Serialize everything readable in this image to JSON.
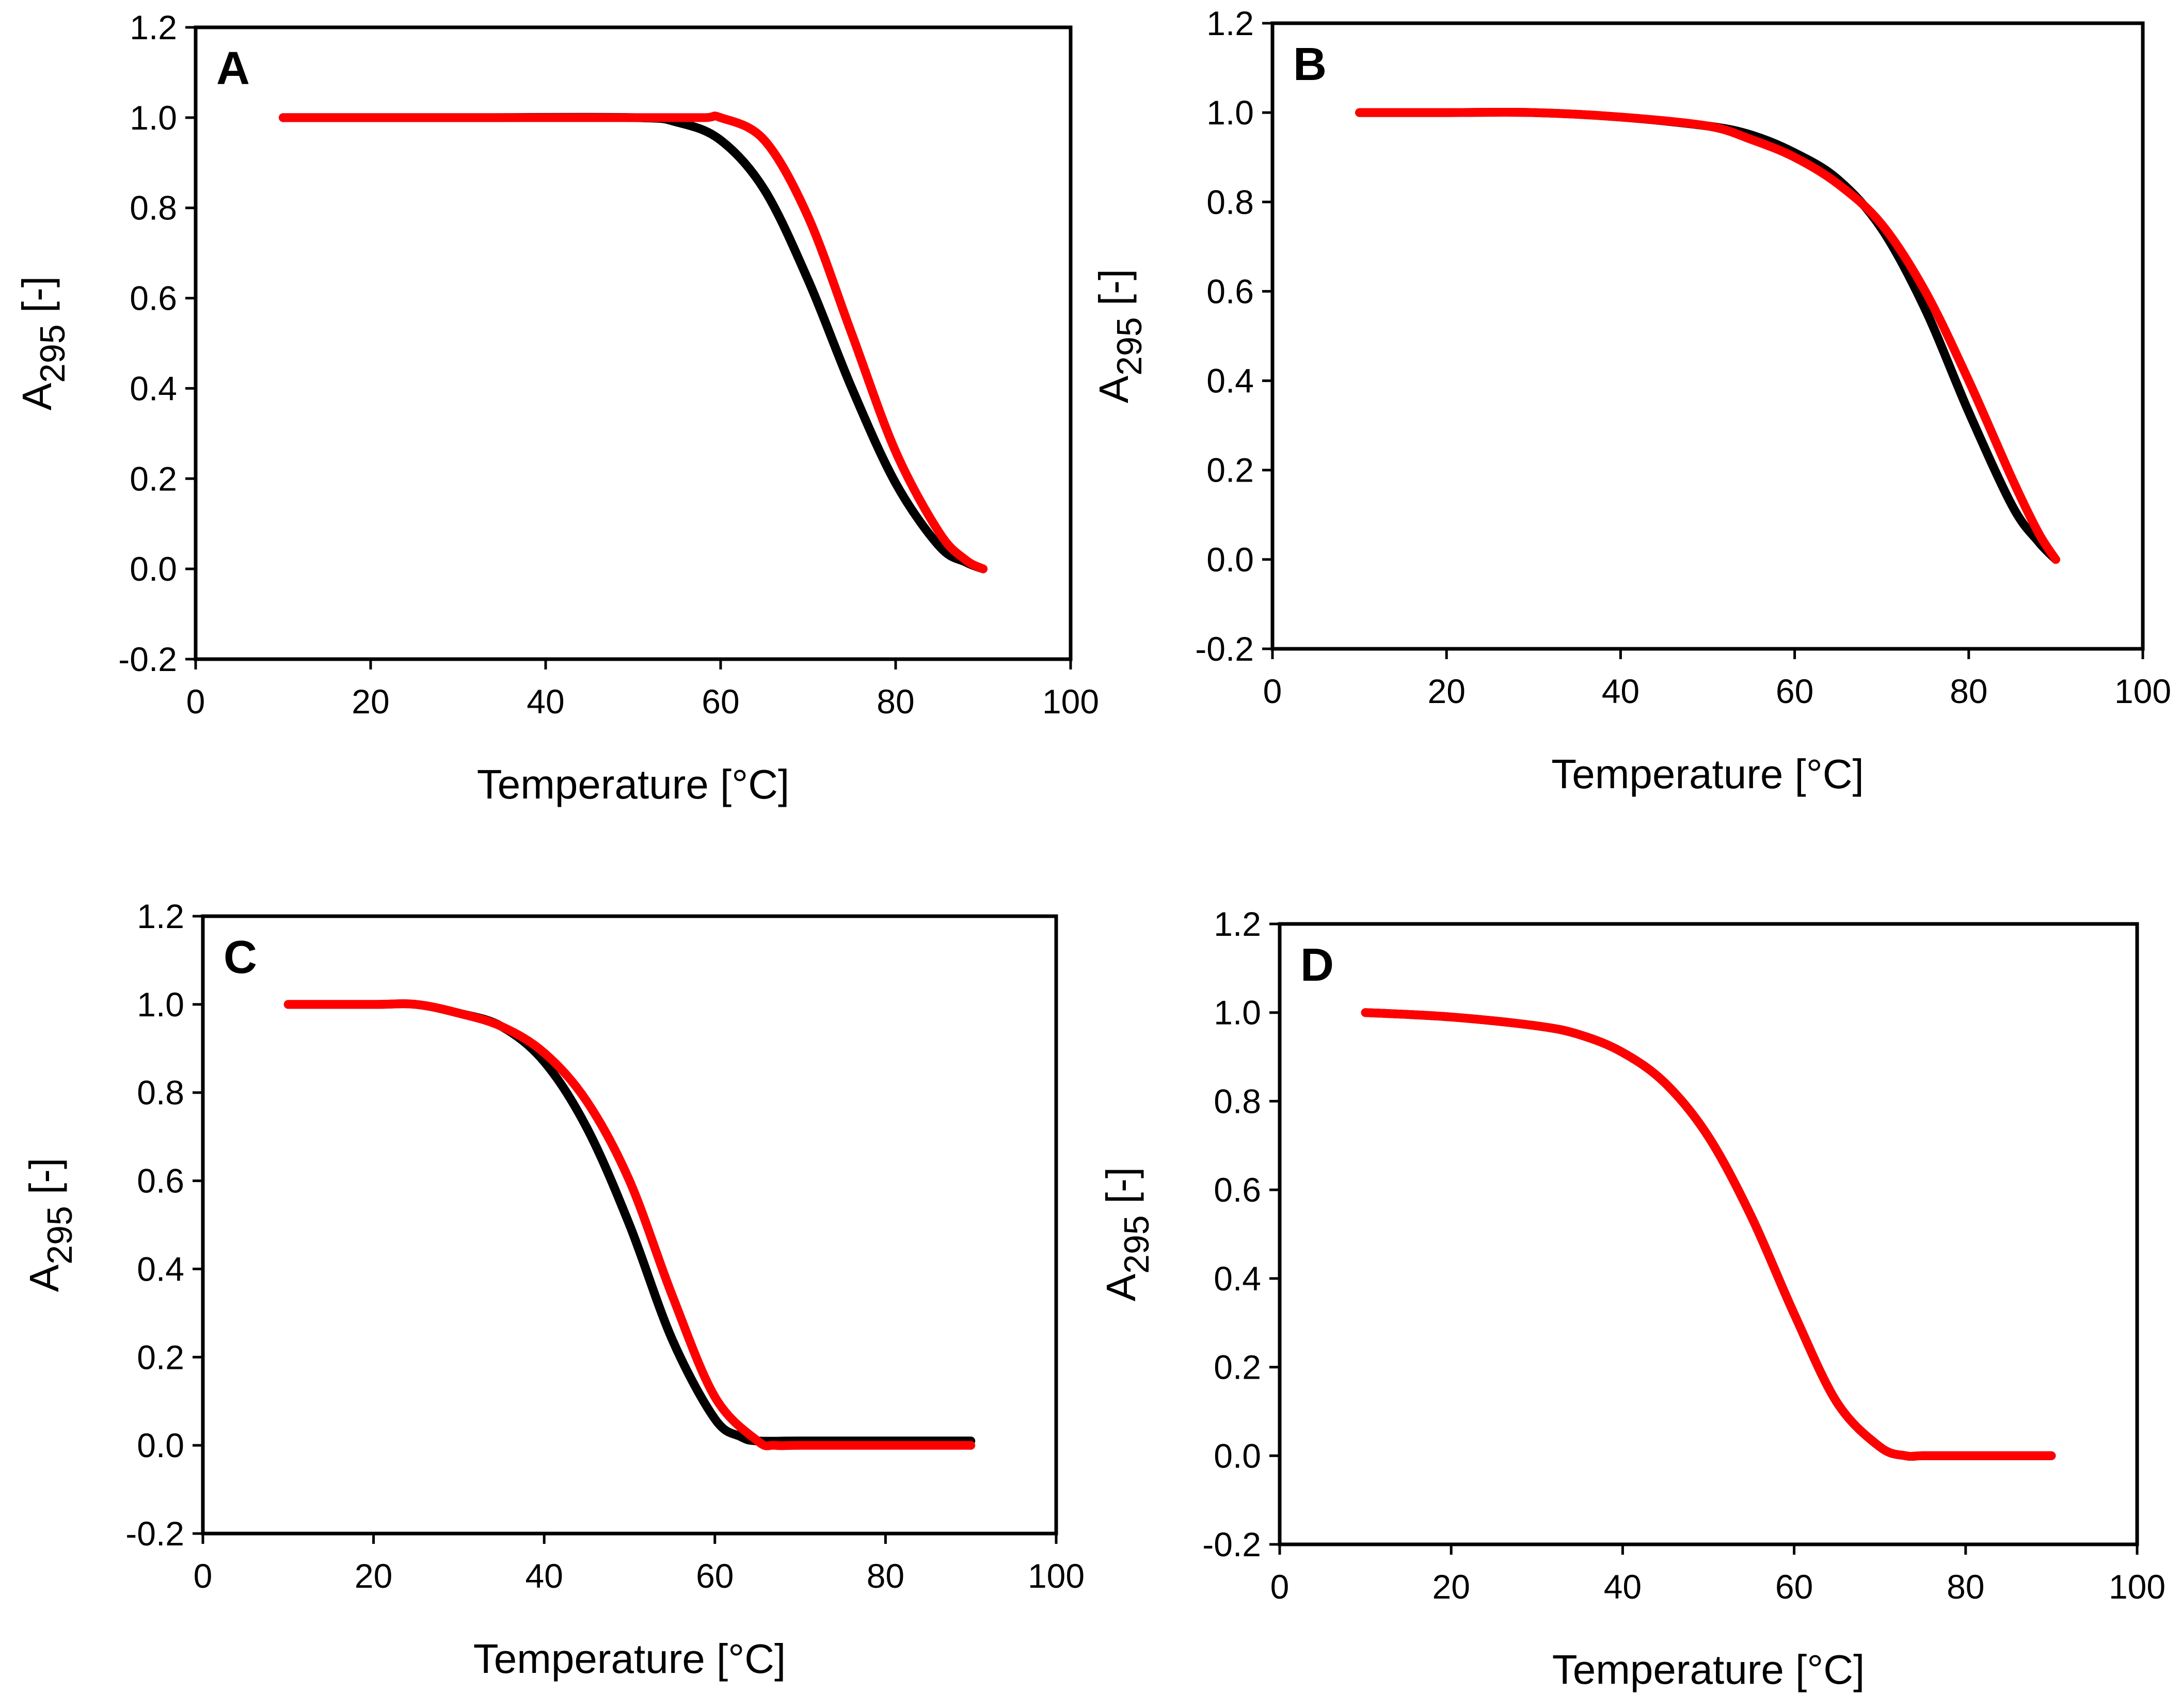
{
  "figure": {
    "colors": {
      "series_black": "#000000",
      "series_red": "#ff0000"
    }
  },
  "chart_data": [
    {
      "panel_label": "A",
      "type": "line",
      "xlabel": "Temperature [°C]",
      "ylabel_main": "A",
      "ylabel_sub": "295",
      "ylabel_suffix": " [-]",
      "xlim": [
        0,
        100
      ],
      "ylim": [
        -0.2,
        1.2
      ],
      "xticks": [
        0,
        20,
        40,
        60,
        80,
        100
      ],
      "xtick_labels": [
        "0",
        "20",
        "40",
        "60",
        "80",
        "100"
      ],
      "yticks": [
        -0.2,
        0,
        0.2,
        0.4,
        0.6,
        0.8,
        1.0,
        1.2
      ],
      "ytick_labels": [
        "-0.2",
        "0.0",
        "0.2",
        "0.4",
        "0.6",
        "0.8",
        "1.0",
        "1.2"
      ],
      "grid": false,
      "series": [
        {
          "color": "#000000",
          "x": [
            10,
            30,
            50,
            55,
            60,
            65,
            70,
            75,
            80,
            85,
            88,
            90
          ],
          "y": [
            1.0,
            1.0,
            1.0,
            0.99,
            0.95,
            0.84,
            0.64,
            0.4,
            0.19,
            0.05,
            0.015,
            0.0
          ]
        },
        {
          "color": "#ff0000",
          "x": [
            10,
            30,
            50,
            58,
            60,
            65,
            70,
            75,
            80,
            85,
            88,
            90
          ],
          "y": [
            1.0,
            1.0,
            1.0,
            1.0,
            1.0,
            0.95,
            0.78,
            0.52,
            0.26,
            0.08,
            0.02,
            0.0
          ]
        }
      ]
    },
    {
      "panel_label": "B",
      "type": "line",
      "xlabel": "Temperature [°C]",
      "ylabel_main": "A",
      "ylabel_sub": "295",
      "ylabel_suffix": " [-]",
      "xlim": [
        0,
        100
      ],
      "ylim": [
        -0.2,
        1.2
      ],
      "xticks": [
        0,
        20,
        40,
        60,
        80,
        100
      ],
      "xtick_labels": [
        "0",
        "20",
        "40",
        "60",
        "80",
        "100"
      ],
      "yticks": [
        -0.2,
        0,
        0.2,
        0.4,
        0.6,
        0.8,
        1.0,
        1.2
      ],
      "ytick_labels": [
        "-0.2",
        "0.0",
        "0.2",
        "0.4",
        "0.6",
        "0.8",
        "1.0",
        "1.2"
      ],
      "grid": false,
      "series": [
        {
          "color": "#000000",
          "x": [
            10,
            20,
            30,
            40,
            50,
            55,
            60,
            65,
            70,
            75,
            80,
            85,
            88,
            90
          ],
          "y": [
            1.0,
            1.0,
            1.0,
            0.99,
            0.97,
            0.95,
            0.91,
            0.85,
            0.74,
            0.56,
            0.33,
            0.12,
            0.04,
            0.0
          ]
        },
        {
          "color": "#ff0000",
          "x": [
            10,
            20,
            30,
            40,
            50,
            55,
            60,
            65,
            70,
            75,
            80,
            85,
            88,
            90
          ],
          "y": [
            1.0,
            1.0,
            1.0,
            0.99,
            0.97,
            0.94,
            0.9,
            0.84,
            0.75,
            0.6,
            0.4,
            0.18,
            0.06,
            0.0
          ]
        }
      ]
    },
    {
      "panel_label": "C",
      "type": "line",
      "xlabel": "Temperature [°C]",
      "ylabel_main": "A",
      "ylabel_sub": "295",
      "ylabel_suffix": " [-]",
      "xlim": [
        0,
        100
      ],
      "ylim": [
        -0.2,
        1.2
      ],
      "xticks": [
        0,
        20,
        40,
        60,
        80,
        100
      ],
      "xtick_labels": [
        "0",
        "20",
        "40",
        "60",
        "80",
        "100"
      ],
      "yticks": [
        -0.2,
        0,
        0.2,
        0.4,
        0.6,
        0.8,
        1.0,
        1.2
      ],
      "ytick_labels": [
        "-0.2",
        "0.0",
        "0.2",
        "0.4",
        "0.6",
        "0.8",
        "1.0",
        "1.2"
      ],
      "grid": false,
      "series": [
        {
          "color": "#000000",
          "x": [
            10,
            20,
            25,
            30,
            35,
            40,
            45,
            50,
            55,
            60,
            63,
            65,
            70,
            80,
            90
          ],
          "y": [
            1.0,
            1.0,
            1.0,
            0.98,
            0.95,
            0.87,
            0.72,
            0.5,
            0.24,
            0.06,
            0.02,
            0.01,
            0.01,
            0.01,
            0.01
          ]
        },
        {
          "color": "#ff0000",
          "x": [
            10,
            20,
            25,
            30,
            35,
            40,
            45,
            50,
            55,
            60,
            65,
            67,
            70,
            80,
            90
          ],
          "y": [
            1.0,
            1.0,
            1.0,
            0.98,
            0.95,
            0.89,
            0.78,
            0.6,
            0.34,
            0.11,
            0.01,
            0.0,
            0.0,
            0.0,
            0.0
          ]
        }
      ]
    },
    {
      "panel_label": "D",
      "type": "line",
      "xlabel": "Temperature [°C]",
      "ylabel_main": "A",
      "ylabel_sub": "295",
      "ylabel_suffix": " [-]",
      "xlim": [
        0,
        100
      ],
      "ylim": [
        -0.2,
        1.2
      ],
      "xticks": [
        0,
        20,
        40,
        60,
        80,
        100
      ],
      "xtick_labels": [
        "0",
        "20",
        "40",
        "60",
        "80",
        "100"
      ],
      "yticks": [
        -0.2,
        0,
        0.2,
        0.4,
        0.6,
        0.8,
        1.0,
        1.2
      ],
      "ytick_labels": [
        "-0.2",
        "0.0",
        "0.2",
        "0.4",
        "0.6",
        "0.8",
        "1.0",
        "1.2"
      ],
      "grid": false,
      "series": [
        {
          "color": "#000000",
          "x": [
            10,
            20,
            30,
            35,
            40,
            45,
            50,
            55,
            60,
            65,
            70,
            73,
            75,
            80,
            90
          ],
          "y": [
            1.0,
            0.99,
            0.97,
            0.95,
            0.91,
            0.84,
            0.72,
            0.54,
            0.32,
            0.12,
            0.02,
            0.0,
            0.0,
            0.0,
            0.0
          ]
        },
        {
          "color": "#ff0000",
          "x": [
            10,
            20,
            30,
            35,
            40,
            45,
            50,
            55,
            60,
            65,
            70,
            73,
            75,
            80,
            90
          ],
          "y": [
            1.0,
            0.99,
            0.97,
            0.95,
            0.91,
            0.84,
            0.72,
            0.54,
            0.32,
            0.12,
            0.02,
            0.0,
            0.0,
            0.0,
            0.0
          ]
        }
      ]
    }
  ]
}
